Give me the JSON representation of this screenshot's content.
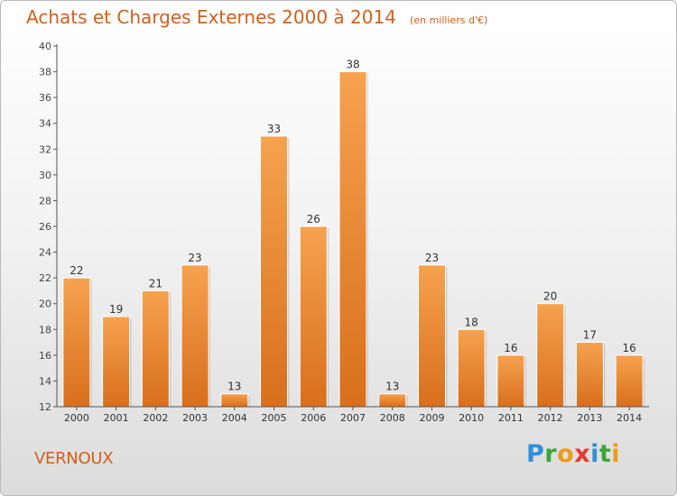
{
  "chart_data": {
    "type": "bar",
    "title": "Achats et Charges Externes 2000 à 2014",
    "subtitle": "(en milliers d'€)",
    "categories": [
      "2000",
      "2001",
      "2002",
      "2003",
      "2004",
      "2005",
      "2006",
      "2007",
      "2008",
      "2009",
      "2010",
      "2011",
      "2012",
      "2013",
      "2014"
    ],
    "values": [
      22,
      19,
      21,
      23,
      13,
      33,
      26,
      38,
      13,
      23,
      18,
      16,
      20,
      17,
      16
    ],
    "ylim": [
      12,
      40
    ],
    "yticks": [
      "12",
      "14",
      "16",
      "18",
      "20",
      "22",
      "24",
      "26",
      "28",
      "30",
      "32",
      "34",
      "36",
      "38",
      "40"
    ],
    "grid": false,
    "bar_color": "#f0883a"
  },
  "commune": "VERNOUX",
  "brand": {
    "letters": [
      "P",
      "r",
      "o",
      "x",
      "i",
      "t",
      "i"
    ],
    "colors": [
      "#2f8fd9",
      "#3aa63a",
      "#f09a1a",
      "#e43b2b",
      "#2f8fd9",
      "#3aa63a",
      "#f09a1a"
    ]
  }
}
